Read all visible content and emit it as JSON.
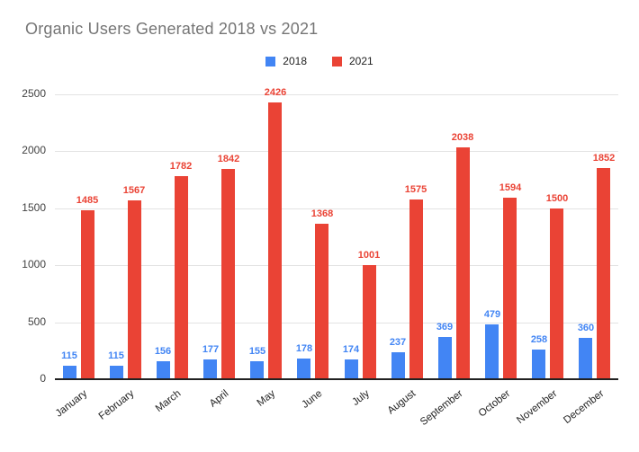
{
  "chart": {
    "title": "Organic Users Generated 2018 vs 2021"
  },
  "chart_data": {
    "type": "bar",
    "title": "Organic Users Generated 2018 vs 2021",
    "categories": [
      "January",
      "February",
      "March",
      "April",
      "May",
      "June",
      "July",
      "August",
      "September",
      "October",
      "November",
      "December"
    ],
    "series": [
      {
        "name": "2018",
        "color": "#4285F4",
        "values": [
          115,
          115,
          156,
          177,
          155,
          178,
          174,
          237,
          369,
          479,
          258,
          360
        ]
      },
      {
        "name": "2021",
        "color": "#EA4335",
        "values": [
          1485,
          1567,
          1782,
          1842,
          2426,
          1368,
          1001,
          1575,
          2038,
          1594,
          1500,
          1852
        ]
      }
    ],
    "xlabel": "",
    "ylabel": "",
    "ylim": [
      0,
      2500
    ],
    "yticks": [
      0,
      500,
      1000,
      1500,
      2000,
      2500
    ],
    "grid": true,
    "data_labels": true,
    "legend_position": "top-center"
  },
  "colors": {
    "series_2018": "#4285F4",
    "series_2021": "#EA4335",
    "title_text": "#757575",
    "gridline": "#e3e3e3",
    "axis_line": "#212121",
    "background": "#ffffff"
  }
}
